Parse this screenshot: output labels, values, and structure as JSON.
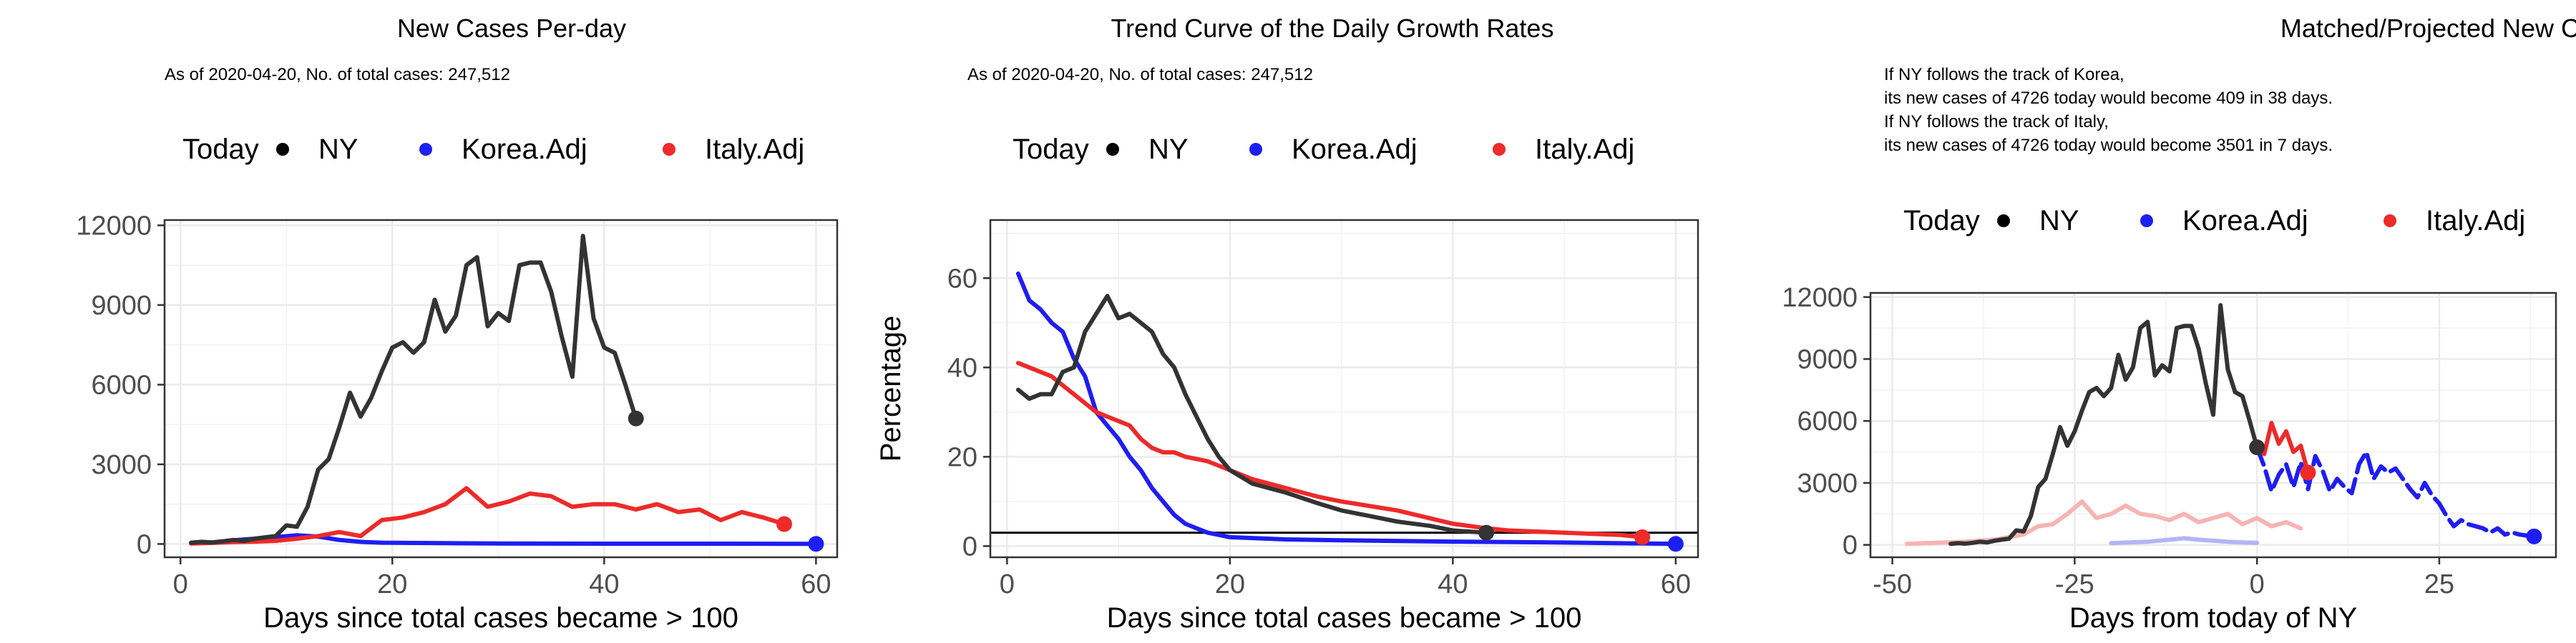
{
  "colors": {
    "ny": "#333333",
    "korea": "#1e1ef2",
    "italy": "#ee2a2a",
    "korea_faded": "#b4b4f8",
    "italy_faded": "#f7b4b4",
    "legend_ny": "#000000",
    "legend_korea": "#1e1ef2",
    "legend_italy": "#ee2a2a"
  },
  "chart_data": [
    {
      "type": "line",
      "title": "New Cases Per-day",
      "subtitle_lines": [
        "As of 2020-04-20, No. of total cases: 247,512"
      ],
      "legend": {
        "title": "Today",
        "entries": [
          "NY",
          "Korea.Adj",
          "Italy.Adj"
        ],
        "position": "top"
      },
      "xlabel": "Days since total cases became > 100",
      "ylabel": "",
      "xlim": [
        -1.5,
        62
      ],
      "ylim": [
        -500,
        12200
      ],
      "xticks": [
        0,
        20,
        40,
        60
      ],
      "yticks": [
        0,
        3000,
        6000,
        9000,
        12000
      ],
      "grid": true,
      "series": [
        {
          "name": "Korea.Adj",
          "x": [
            1,
            3,
            5,
            7,
            9,
            11,
            13,
            15,
            17,
            19,
            25,
            30,
            40,
            50,
            60
          ],
          "y": [
            30,
            60,
            140,
            200,
            260,
            330,
            280,
            150,
            80,
            50,
            30,
            20,
            10,
            10,
            5
          ],
          "today": {
            "x": 60,
            "y": 5
          }
        },
        {
          "name": "Italy.Adj",
          "x": [
            1,
            3,
            5,
            7,
            9,
            11,
            13,
            15,
            17,
            19,
            21,
            23,
            25,
            27,
            29,
            31,
            33,
            35,
            37,
            39,
            41,
            43,
            45,
            47,
            49,
            51,
            53,
            55,
            57
          ],
          "y": [
            20,
            40,
            70,
            90,
            120,
            200,
            300,
            450,
            300,
            900,
            1000,
            1200,
            1500,
            2100,
            1400,
            1600,
            1900,
            1800,
            1400,
            1500,
            1500,
            1300,
            1500,
            1200,
            1300,
            900,
            1200,
            1000,
            750
          ],
          "today": {
            "x": 57,
            "y": 750
          }
        },
        {
          "name": "NY",
          "x": [
            1,
            2,
            3,
            4,
            5,
            6,
            7,
            8,
            9,
            10,
            11,
            12,
            13,
            14,
            15,
            16,
            17,
            18,
            19,
            20,
            21,
            22,
            23,
            24,
            25,
            26,
            27,
            28,
            29,
            30,
            31,
            32,
            33,
            34,
            35,
            36,
            37,
            38,
            39,
            40,
            41,
            42,
            43
          ],
          "y": [
            50,
            80,
            60,
            100,
            150,
            120,
            200,
            250,
            300,
            700,
            650,
            1400,
            2800,
            3200,
            4400,
            5700,
            4800,
            5500,
            6500,
            7400,
            7600,
            7200,
            7600,
            9200,
            8000,
            8600,
            10500,
            10800,
            8200,
            8700,
            8400,
            10500,
            10600,
            10600,
            9500,
            7800,
            6300,
            11600,
            8500,
            7400,
            7200,
            6000,
            4726
          ],
          "today": {
            "x": 43,
            "y": 4726
          }
        }
      ]
    },
    {
      "type": "line",
      "title": "Trend Curve of the Daily Growth Rates",
      "subtitle_lines": [
        "As of 2020-04-20, No. of total cases: 247,512"
      ],
      "legend": {
        "title": "Today",
        "entries": [
          "NY",
          "Korea.Adj",
          "Italy.Adj"
        ],
        "position": "top"
      },
      "xlabel": "Days since total cases became > 100",
      "ylabel": "Percentage",
      "xlim": [
        -1.5,
        62
      ],
      "ylim": [
        -2.5,
        73
      ],
      "xticks": [
        0,
        20,
        40,
        60
      ],
      "yticks": [
        0,
        20,
        40,
        60
      ],
      "grid": true,
      "hline": 3,
      "series": [
        {
          "name": "Korea.Adj",
          "x": [
            1,
            2,
            3,
            4,
            5,
            6,
            7,
            8,
            9,
            10,
            11,
            12,
            13,
            14,
            15,
            16,
            17,
            18,
            19,
            20,
            22,
            25,
            30,
            40,
            50,
            60
          ],
          "y": [
            61,
            55,
            53,
            50,
            48,
            42,
            38,
            30,
            27,
            24,
            20,
            17,
            13,
            10,
            7,
            5,
            4,
            3,
            2.5,
            2,
            1.8,
            1.5,
            1.3,
            1,
            0.8,
            0.5
          ],
          "today": {
            "x": 60,
            "y": 0.5
          }
        },
        {
          "name": "Italy.Adj",
          "x": [
            1,
            2,
            3,
            4,
            5,
            6,
            7,
            8,
            9,
            10,
            11,
            12,
            13,
            14,
            15,
            16,
            18,
            20,
            22,
            25,
            28,
            30,
            35,
            40,
            43,
            45,
            50,
            55,
            57
          ],
          "y": [
            41,
            40,
            39,
            38,
            36,
            34,
            32,
            30,
            29,
            28,
            27,
            24,
            22,
            21,
            21,
            20,
            19,
            17,
            15,
            13,
            11,
            10,
            8,
            5,
            4,
            3.5,
            3,
            2.5,
            2
          ],
          "today": {
            "x": 57,
            "y": 2
          }
        },
        {
          "name": "NY",
          "x": [
            1,
            2,
            3,
            4,
            5,
            6,
            7,
            8,
            9,
            10,
            11,
            12,
            13,
            14,
            15,
            16,
            17,
            18,
            19,
            20,
            22,
            25,
            28,
            30,
            33,
            35,
            38,
            40,
            43
          ],
          "y": [
            35,
            33,
            34,
            34,
            39,
            40,
            48,
            52,
            56,
            51,
            52,
            50,
            48,
            43,
            40,
            34,
            29,
            24,
            20,
            17,
            14,
            12,
            9.5,
            8,
            6.5,
            5.5,
            4.5,
            3.5,
            3
          ],
          "today": {
            "x": 43,
            "y": 3
          }
        }
      ]
    },
    {
      "type": "line",
      "title": "Matched/Projected New Cases Per-day",
      "subtitle_lines": [
        "If NY follows the track of Korea,",
        "its new cases of 4726 today would become 409 in 38 days.",
        "If NY follows the track of Italy,",
        "its new cases of 4726 today would become 3501 in 7 days."
      ],
      "legend": {
        "title": "Today",
        "entries": [
          "NY",
          "Korea.Adj",
          "Italy.Adj"
        ],
        "position": "top"
      },
      "xlabel": "Days from today of NY",
      "ylabel": "",
      "xlim": [
        -53,
        41
      ],
      "ylim": [
        -600,
        12200
      ],
      "xticks": [
        -50,
        -25,
        0,
        25
      ],
      "yticks": [
        0,
        3000,
        6000,
        9000,
        12000
      ],
      "grid": true,
      "series": [
        {
          "name": "Korea.Adj (matched)",
          "x": [
            -20,
            -15,
            -10,
            -8,
            -6,
            -4,
            -2,
            0
          ],
          "y": [
            80,
            150,
            320,
            250,
            200,
            150,
            120,
            100
          ]
        },
        {
          "name": "Italy.Adj (matched)",
          "x": [
            -48,
            -44,
            -40,
            -36,
            -32,
            -30,
            -28,
            -26,
            -24,
            -22,
            -20,
            -18,
            -16,
            -14,
            -12,
            -10,
            -8,
            -6,
            -4,
            -2,
            0,
            2,
            4,
            6
          ],
          "y": [
            50,
            100,
            150,
            250,
            500,
            900,
            1000,
            1500,
            2100,
            1300,
            1500,
            1900,
            1500,
            1400,
            1200,
            1500,
            1100,
            1300,
            1500,
            1000,
            1300,
            900,
            1100,
            800
          ]
        },
        {
          "name": "Korea.Adj",
          "x": [
            0,
            1,
            2,
            3,
            4,
            5,
            6,
            7,
            8,
            9,
            10,
            11,
            12,
            13,
            14,
            15,
            16,
            17,
            18,
            19,
            20,
            21,
            22,
            23,
            24,
            25,
            26,
            27,
            28,
            29,
            30,
            31,
            32,
            33,
            34,
            35,
            36,
            37,
            38
          ],
          "y": [
            4726,
            3800,
            2600,
            3400,
            3900,
            2800,
            4000,
            2700,
            4300,
            3600,
            2600,
            3200,
            2800,
            2500,
            3900,
            4500,
            3200,
            3800,
            3500,
            3700,
            3200,
            2700,
            2300,
            3000,
            2400,
            2000,
            1400,
            900,
            1200,
            1000,
            900,
            800,
            600,
            800,
            500,
            600,
            500,
            450,
            409
          ],
          "dashed": true,
          "today": {
            "x": 38,
            "y": 409
          }
        },
        {
          "name": "Italy.Adj",
          "x": [
            0,
            1,
            2,
            3,
            4,
            5,
            6,
            7
          ],
          "y": [
            4726,
            4400,
            5900,
            4900,
            5500,
            4500,
            4800,
            3501
          ],
          "today": {
            "x": 7,
            "y": 3501
          }
        },
        {
          "name": "NY",
          "x": [
            -42,
            -41,
            -40,
            -39,
            -38,
            -37,
            -36,
            -35,
            -34,
            -33,
            -32,
            -31,
            -30,
            -29,
            -28,
            -27,
            -26,
            -25,
            -24,
            -23,
            -22,
            -21,
            -20,
            -19,
            -18,
            -17,
            -16,
            -15,
            -14,
            -13,
            -12,
            -11,
            -10,
            -9,
            -8,
            -7,
            -6,
            -5,
            -4,
            -3,
            -2,
            -1,
            0
          ],
          "y": [
            50,
            80,
            60,
            100,
            150,
            120,
            200,
            250,
            300,
            700,
            650,
            1400,
            2800,
            3200,
            4400,
            5700,
            4800,
            5500,
            6500,
            7400,
            7600,
            7200,
            7600,
            9200,
            8000,
            8600,
            10500,
            10800,
            8200,
            8700,
            8400,
            10500,
            10600,
            10600,
            9500,
            7800,
            6300,
            11600,
            8500,
            7400,
            7200,
            6000,
            4726
          ],
          "today": {
            "x": 0,
            "y": 4726
          }
        }
      ]
    }
  ]
}
